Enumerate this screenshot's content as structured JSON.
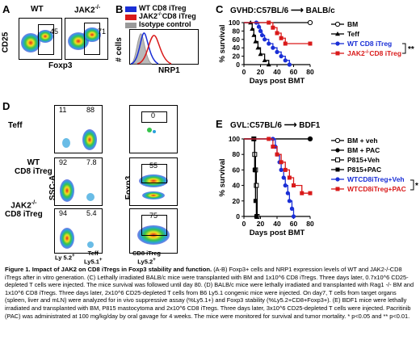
{
  "panel_letters": {
    "A": "A",
    "B": "B",
    "C": "C",
    "D": "D",
    "E": "E"
  },
  "panelA": {
    "cols": [
      "WT",
      "JAK2"
    ],
    "col2_sup": "-/-",
    "ylabel": "CD25",
    "xlabel": "Foxp3",
    "values": [
      "45",
      "71"
    ]
  },
  "panelB": {
    "legend": [
      {
        "label": "WT CD8 iTreg",
        "color": "#1a2fd6"
      },
      {
        "label": "JAK2",
        "sup": "-/-",
        "label_rest": "CD8 iTreg",
        "color": "#d91a1a"
      },
      {
        "label": "Isotype control",
        "color": "#9a9a9a"
      }
    ],
    "ylabel": "# cells",
    "xlabel": "NRP1"
  },
  "panelC": {
    "title_left": "GVHD:C57BL/6",
    "title_right": "BALB/c",
    "ylabel": "% survival",
    "xlabel": "Days post BMT",
    "yticks": [
      "0",
      "20",
      "40",
      "60",
      "80",
      "100"
    ],
    "xticks": [
      "0",
      "20",
      "40",
      "60",
      "80"
    ],
    "legend": [
      {
        "label": "BM",
        "color": "#000000",
        "marker": "open-circle"
      },
      {
        "label": "Teff",
        "color": "#000000",
        "marker": "filled-triangle"
      },
      {
        "label": "WT CD8 iTreg",
        "color": "#1a2fd6",
        "marker": "filled-circle"
      },
      {
        "label": "JAK2",
        "sup": "-/-",
        "label_rest": "CD8 iTreg",
        "color": "#d91a1a",
        "marker": "filled-square"
      }
    ],
    "significance": "**"
  },
  "panelD": {
    "rows": [
      "Teff",
      "WT\nCD8 iTreg",
      "JAK2"
    ],
    "row3_sup": "-/-",
    "row3_rest": "CD8 iTreg",
    "left_values": [
      [
        "11",
        "88"
      ],
      [
        "92",
        "7.8"
      ],
      [
        "94",
        "5.4"
      ]
    ],
    "right_values": [
      "0",
      "55",
      "75"
    ],
    "ylabel_left": "SSC-A",
    "xlabel_left1": "Ly 5.2",
    "xlabel_left1_sup": "+",
    "xlabel_left2": "Teff",
    "xlabel_left3": "Ly5.1",
    "xlabel_left3_sup": "+",
    "ylabel_right": "Foxp3",
    "xlabel_right1": "CD8 iTreg",
    "xlabel_right2": "Ly5.2",
    "xlabel_right2_sup": "+"
  },
  "panelE": {
    "title_left": "GVL:C57BL/6",
    "title_right": "BDF1",
    "ylabel": "% survival",
    "xlabel": "Days post BMT",
    "yticks": [
      "0",
      "20",
      "40",
      "60",
      "80",
      "100"
    ],
    "xticks": [
      "0",
      "20",
      "40",
      "60",
      "80"
    ],
    "legend": [
      {
        "label": "BM + veh",
        "color": "#000000",
        "marker": "open-circle"
      },
      {
        "label": "BM + PAC",
        "color": "#000000",
        "marker": "filled-circle"
      },
      {
        "label": "P815+Veh",
        "color": "#000000",
        "marker": "open-square"
      },
      {
        "label": "P815+PAC",
        "color": "#000000",
        "marker": "filled-square"
      },
      {
        "label": "WTCD8iTreg+Veh",
        "color": "#1a2fd6",
        "marker": "filled-circle"
      },
      {
        "label": "WTCD8iTreg+PAC",
        "color": "#d91a1a",
        "marker": "filled-square"
      }
    ],
    "significance": "*"
  },
  "chart_data": [
    {
      "type": "line",
      "title": "GVHD:C57BL/6 → BALB/c",
      "xlabel": "Days post BMT",
      "ylabel": "% survival",
      "xlim": [
        0,
        80
      ],
      "ylim": [
        0,
        100
      ],
      "series": [
        {
          "name": "BM",
          "x": [
            0,
            80
          ],
          "y": [
            100,
            100
          ]
        },
        {
          "name": "Teff",
          "x": [
            0,
            8,
            10,
            12,
            14,
            17,
            20,
            25,
            30
          ],
          "y": [
            100,
            100,
            85,
            70,
            55,
            40,
            25,
            10,
            0
          ]
        },
        {
          "name": "WT CD8 iTreg",
          "x": [
            0,
            15,
            18,
            20,
            22,
            25,
            30,
            35,
            40,
            45,
            50,
            55
          ],
          "y": [
            100,
            100,
            90,
            80,
            70,
            60,
            50,
            40,
            30,
            20,
            10,
            0
          ]
        },
        {
          "name": "JAK2-/-CD8 iTreg",
          "x": [
            0,
            30,
            35,
            40,
            45,
            50,
            80
          ],
          "y": [
            100,
            100,
            88,
            75,
            63,
            50,
            50
          ]
        }
      ]
    },
    {
      "type": "line",
      "title": "GVL:C57BL/6 → BDF1",
      "xlabel": "Days post BMT",
      "ylabel": "% survival",
      "xlim": [
        0,
        80
      ],
      "ylim": [
        0,
        100
      ],
      "series": [
        {
          "name": "BM + veh",
          "x": [
            0,
            80
          ],
          "y": [
            100,
            100
          ]
        },
        {
          "name": "BM + PAC",
          "x": [
            0,
            80
          ],
          "y": [
            100,
            100
          ]
        },
        {
          "name": "P815+Veh",
          "x": [
            0,
            12,
            13,
            14,
            15,
            16
          ],
          "y": [
            100,
            100,
            80,
            60,
            40,
            0
          ]
        },
        {
          "name": "P815+PAC",
          "x": [
            0,
            12,
            13,
            14,
            15
          ],
          "y": [
            100,
            100,
            60,
            20,
            0
          ]
        },
        {
          "name": "WTCD8iTreg+Veh",
          "x": [
            0,
            35,
            38,
            40,
            43,
            45,
            48,
            50,
            53,
            55,
            58,
            60
          ],
          "y": [
            100,
            100,
            90,
            80,
            70,
            60,
            50,
            40,
            30,
            20,
            10,
            0
          ]
        },
        {
          "name": "WTCD8iTreg+PAC",
          "x": [
            0,
            30,
            35,
            40,
            45,
            50,
            55,
            60,
            70,
            80
          ],
          "y": [
            100,
            100,
            90,
            80,
            70,
            60,
            50,
            40,
            30,
            30
          ]
        }
      ]
    }
  ],
  "caption": {
    "title": "Figure 1. Impact of JAK2 on CD8 iTregs in Foxp3 stability and function.",
    "body": "(A-B) Foxp3+ cells and NRP1 expression levels of WT and JAK2-/-CD8 iTregs after in vitro generation. (C) Lethally irradiated BALB/c mice were transplanted with BM and 1x10^6 CD8 iTregs. Three days later, 0.7x10^6 CD25-depleted T cells were injected. The mice survival was followed until day 80. (D) BALB/c mice were lethally irradiated and transplanted with Rag1 -/- BM and 1x10^6 CD8 iTregs. Three days later, 2x10^6 CD25-depleted T cells from B6 Ly5.1 congenic mice were injected. On day7, T cells from target organs (spleen, liver and mLN) were analyzed for in vivo suppressive assay (%Ly5.1+) and Foxp3 stability (%Ly5.2+CD8+Foxp3+). (E) BDF1 mice were lethally irradiated and transplanted with BM, P815 mastocytoma and 2x10^6 CD8 iTregs. Three days later, 3x10^6 CD25-depleted T cells were injected. Pacritinib (PAC) was administrated at 100 mg/kg/day by oral gavage for 4 weeks. The mice were monitored for survival and tumor mortality. * p<0.05 and ** p<0.01."
  }
}
